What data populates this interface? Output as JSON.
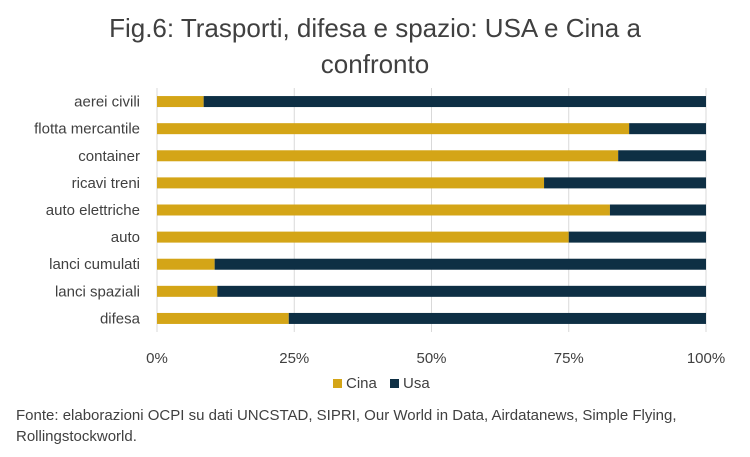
{
  "title": {
    "line1": "Fig.6: Trasporti, difesa e spazio: USA e Cina a",
    "line2": "confronto"
  },
  "source_note": "Fonte: elaborazioni OCPI su dati UNCSTAD, SIPRI, Our World in Data, Airdatanews, Simple Flying, Rollingstockworld.",
  "colors": {
    "cina": "#D4A517",
    "usa": "#0E2F44",
    "grid": "#D9D9D9",
    "text": "#404040"
  },
  "chart_data": {
    "type": "bar",
    "orientation": "horizontal",
    "stacked": "percent",
    "categories": [
      "aerei civili",
      "flotta mercantile",
      "container",
      "ricavi treni",
      "auto elettriche",
      "auto",
      "lanci cumulati",
      "lanci spaziali",
      "difesa"
    ],
    "series": [
      {
        "name": "Cina",
        "values": [
          8.5,
          86,
          84,
          70.5,
          82.5,
          75,
          10.5,
          11,
          24
        ]
      },
      {
        "name": "Usa",
        "values": [
          91.5,
          14,
          16,
          29.5,
          17.5,
          25,
          89.5,
          89,
          76
        ]
      }
    ],
    "xlim": [
      0,
      100
    ],
    "x_ticks": [
      "0%",
      "25%",
      "50%",
      "75%",
      "100%"
    ],
    "grid": true,
    "legend_position": "bottom"
  }
}
